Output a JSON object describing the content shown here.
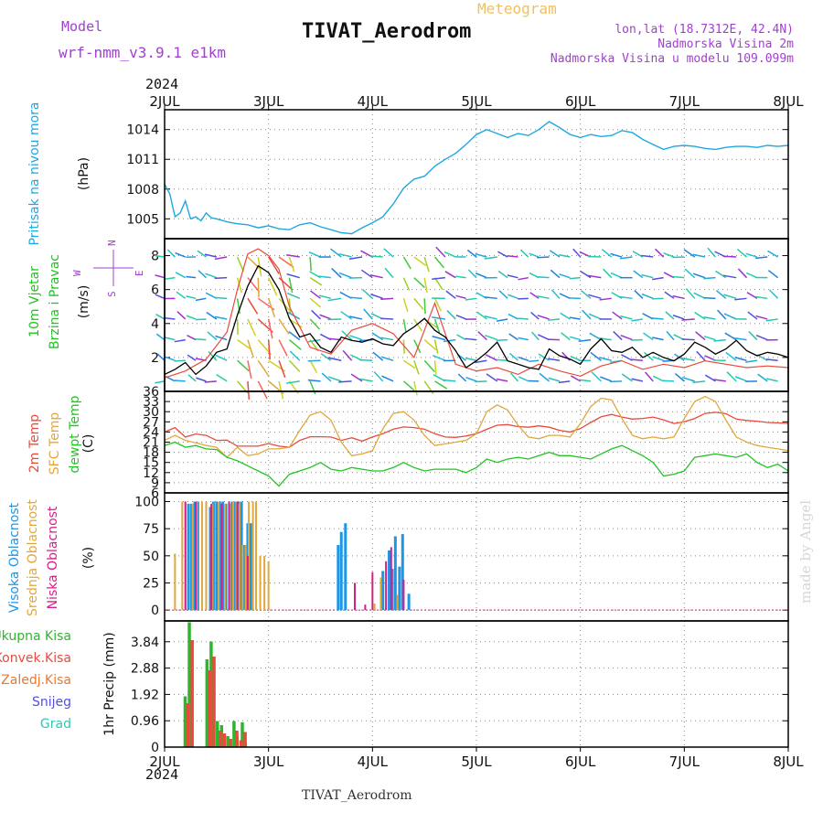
{
  "header": {
    "model_label": "Model",
    "model_name": "wrf-nmm_v3.9.1 e1km",
    "product": "Meteogram",
    "station": "TIVAT_Aerodrom",
    "lonlat": "lon,lat (18.7312E, 42.4N)",
    "elevation": "Nadmorska Visina 2m",
    "model_elevation": "Nadmorska Visina u modelu 109.099m",
    "footer_station": "TIVAT_Aerodrom",
    "watermark": "made by Angel",
    "year_top": "2024",
    "year_bottom": "2024"
  },
  "colors": {
    "pressure": "#1ea8e0",
    "temp2m": "#e84b3c",
    "sfc_temp": "#e0a83c",
    "dewpoint": "#22c422",
    "wind_speed": "#000000",
    "cloud_high": "#1e96e6",
    "cloud_mid": "#e0a83c",
    "cloud_low": "#d41e8c",
    "precip_total": "#2eb52e",
    "precip_conv": "#e84b3c",
    "precip_grid": "#e8782e",
    "snow": "#5050e0",
    "hail": "#2ec8b4",
    "purple_text": "#a040d0"
  },
  "chart_data": [
    {
      "type": "line",
      "panel": "pressure",
      "ylabel_left": "Pritisak na nivou mora",
      "unit": "(hPa)",
      "x_ticks": [
        "2JUL",
        "3JUL",
        "4JUL",
        "5JUL",
        "6JUL",
        "7JUL",
        "8JUL"
      ],
      "y_ticks": [
        1005,
        1008,
        1011,
        1014
      ],
      "ylim": [
        1003,
        1016
      ],
      "series": [
        {
          "x": [
            0,
            0.05,
            0.1,
            0.15,
            0.2,
            0.25,
            0.3,
            0.35,
            0.4,
            0.45,
            0.5,
            0.6,
            0.7,
            0.8,
            0.9,
            1.0,
            1.1,
            1.2,
            1.3,
            1.4,
            1.5,
            1.6,
            1.7,
            1.8,
            1.9,
            2.0,
            2.1,
            2.2,
            2.3,
            2.4,
            2.5,
            2.6,
            2.7,
            2.8,
            2.9,
            3.0,
            3.1,
            3.2,
            3.3,
            3.4,
            3.5,
            3.6,
            3.7,
            3.8,
            3.9,
            4.0,
            4.1,
            4.2,
            4.3,
            4.4,
            4.5,
            4.6,
            4.7,
            4.8,
            4.9,
            5.0,
            5.1,
            5.2,
            5.3,
            5.4,
            5.5,
            5.6,
            5.7,
            5.8,
            5.9,
            6.0
          ],
          "values": [
            1008.5,
            1007.5,
            1005.2,
            1005.6,
            1006.8,
            1005.0,
            1005.2,
            1004.8,
            1005.6,
            1005.1,
            1005.0,
            1004.7,
            1004.5,
            1004.4,
            1004.1,
            1004.3,
            1004.0,
            1003.9,
            1004.4,
            1004.6,
            1004.2,
            1003.9,
            1003.6,
            1003.5,
            1004.1,
            1004.6,
            1005.2,
            1006.5,
            1008.1,
            1009.0,
            1009.3,
            1010.3,
            1011.0,
            1011.6,
            1012.5,
            1013.5,
            1014.0,
            1013.6,
            1013.2,
            1013.6,
            1013.4,
            1014.0,
            1014.8,
            1014.2,
            1013.5,
            1013.2,
            1013.5,
            1013.3,
            1013.4,
            1013.9,
            1013.7,
            1013.0,
            1012.5,
            1012.0,
            1012.3,
            1012.4,
            1012.3,
            1012.1,
            1012.0,
            1012.2,
            1012.3,
            1012.3,
            1012.2,
            1012.4,
            1012.3,
            1012.4
          ]
        }
      ]
    },
    {
      "type": "line",
      "panel": "wind",
      "ylabel_left": "10m Vjetar",
      "ylabel_left2": "Brzina i Pravac",
      "unit": "(m/s)",
      "compass": {
        "n": "N",
        "s": "S",
        "e": "E",
        "w": "W"
      },
      "y_ticks": [
        2,
        4,
        6,
        8
      ],
      "ylim": [
        0,
        9
      ],
      "series": [
        {
          "name": "speed",
          "x": [
            0,
            0.1,
            0.2,
            0.3,
            0.4,
            0.5,
            0.6,
            0.7,
            0.8,
            0.9,
            1.0,
            1.1,
            1.2,
            1.3,
            1.4,
            1.5,
            1.6,
            1.7,
            1.8,
            1.9,
            2.0,
            2.1,
            2.2,
            2.3,
            2.4,
            2.5,
            2.6,
            2.7,
            2.8,
            2.9,
            3.0,
            3.1,
            3.2,
            3.3,
            3.4,
            3.5,
            3.6,
            3.7,
            3.8,
            3.9,
            4.0,
            4.1,
            4.2,
            4.3,
            4.4,
            4.5,
            4.6,
            4.7,
            4.8,
            4.9,
            5.0,
            5.1,
            5.2,
            5.3,
            5.4,
            5.5,
            5.6,
            5.7,
            5.8,
            5.9,
            6.0
          ],
          "values": [
            1.0,
            1.3,
            1.7,
            1.0,
            1.5,
            2.3,
            2.5,
            4.5,
            6.2,
            7.4,
            7.0,
            6.0,
            4.3,
            3.2,
            3.4,
            2.6,
            2.3,
            3.2,
            3.0,
            2.9,
            3.1,
            2.8,
            2.7,
            3.4,
            3.8,
            4.3,
            3.6,
            3.2,
            2.4,
            1.4,
            1.8,
            2.3,
            2.9,
            1.8,
            1.6,
            1.4,
            1.3,
            2.5,
            2.1,
            1.9,
            1.6,
            2.5,
            3.1,
            2.4,
            2.3,
            2.6,
            2.0,
            2.3,
            2.0,
            1.8,
            2.2,
            2.9,
            2.6,
            2.2,
            2.5,
            3.0,
            2.4,
            2.1,
            2.3,
            2.2,
            2.0
          ]
        },
        {
          "name": "gust",
          "x": [
            0,
            0.2,
            0.4,
            0.6,
            0.7,
            0.8,
            0.9,
            1.0,
            1.1,
            1.2,
            1.4,
            1.6,
            1.8,
            2.0,
            2.2,
            2.4,
            2.6,
            2.8,
            3.0,
            3.2,
            3.4,
            3.6,
            3.8,
            4.0,
            4.2,
            4.4,
            4.6,
            4.8,
            5.0,
            5.2,
            5.4,
            5.6,
            5.8,
            6.0
          ],
          "values": [
            0.8,
            1.2,
            1.9,
            3.5,
            6.0,
            8.1,
            8.4,
            8.0,
            7.2,
            5.0,
            2.6,
            2.2,
            3.6,
            4.0,
            3.4,
            2.0,
            5.2,
            1.6,
            1.2,
            1.4,
            1.0,
            1.6,
            1.2,
            0.9,
            1.5,
            1.8,
            1.3,
            1.6,
            1.4,
            1.8,
            1.6,
            1.4,
            1.5,
            1.4
          ]
        }
      ]
    },
    {
      "type": "line",
      "panel": "temperature",
      "ylabels_left": [
        "2m Temp",
        "SFC Temp",
        "dewpt Temp"
      ],
      "unit": "(C)",
      "y_ticks": [
        6,
        9,
        12,
        15,
        18,
        21,
        24,
        27,
        30,
        33,
        36
      ],
      "ylim": [
        6,
        36
      ],
      "series": [
        {
          "name": "temp2m",
          "x": [
            0,
            0.1,
            0.2,
            0.3,
            0.4,
            0.5,
            0.6,
            0.7,
            0.8,
            0.9,
            1.0,
            1.1,
            1.2,
            1.3,
            1.4,
            1.5,
            1.6,
            1.7,
            1.8,
            1.9,
            2.0,
            2.1,
            2.2,
            2.3,
            2.4,
            2.5,
            2.6,
            2.7,
            2.8,
            2.9,
            3.0,
            3.1,
            3.2,
            3.3,
            3.4,
            3.5,
            3.6,
            3.7,
            3.8,
            3.9,
            4.0,
            4.1,
            4.2,
            4.3,
            4.4,
            4.5,
            4.6,
            4.7,
            4.8,
            4.9,
            5.0,
            5.1,
            5.2,
            5.3,
            5.4,
            5.5,
            5.6,
            5.7,
            5.8,
            5.9,
            6.0
          ],
          "values": [
            24.0,
            25.3,
            22.5,
            23.4,
            23.0,
            21.5,
            21.6,
            19.8,
            19.8,
            19.8,
            20.6,
            19.8,
            19.5,
            21.5,
            22.6,
            22.6,
            22.5,
            21.5,
            22.3,
            21.3,
            22.5,
            23.5,
            24.8,
            25.5,
            25.3,
            24.8,
            23.5,
            22.5,
            22.4,
            22.8,
            23.5,
            24.8,
            26.0,
            26.2,
            25.6,
            25.4,
            25.8,
            25.4,
            24.5,
            24.0,
            25.0,
            26.8,
            28.5,
            29.2,
            28.4,
            27.8,
            28.0,
            28.4,
            27.6,
            26.5,
            27.0,
            28.0,
            29.5,
            29.8,
            29.4,
            27.8,
            27.4,
            27.2,
            26.8,
            26.7,
            26.5
          ]
        },
        {
          "name": "sfc_temp",
          "x": [
            0,
            0.1,
            0.2,
            0.3,
            0.4,
            0.5,
            0.6,
            0.7,
            0.8,
            0.9,
            1.0,
            1.1,
            1.2,
            1.3,
            1.4,
            1.5,
            1.6,
            1.7,
            1.8,
            1.9,
            2.0,
            2.1,
            2.2,
            2.3,
            2.4,
            2.5,
            2.6,
            2.7,
            2.8,
            2.9,
            3.0,
            3.1,
            3.2,
            3.3,
            3.4,
            3.5,
            3.6,
            3.7,
            3.8,
            3.9,
            4.0,
            4.1,
            4.2,
            4.3,
            4.4,
            4.5,
            4.6,
            4.7,
            4.8,
            4.9,
            5.0,
            5.1,
            5.2,
            5.3,
            5.4,
            5.5,
            5.6,
            5.7,
            5.8,
            5.9,
            6.0
          ],
          "values": [
            21.5,
            23.0,
            21.5,
            20.8,
            20.0,
            19.5,
            16.5,
            19.5,
            17.0,
            17.5,
            19.0,
            19.0,
            19.5,
            24.5,
            29.0,
            30.0,
            27.5,
            21.0,
            17.0,
            17.5,
            18.5,
            25.0,
            29.5,
            30.0,
            27.5,
            23.0,
            20.0,
            20.5,
            21.0,
            21.5,
            23.5,
            30.0,
            32.0,
            30.5,
            26.0,
            22.5,
            22.0,
            23.0,
            23.0,
            22.5,
            26.5,
            31.5,
            34.0,
            33.5,
            28.0,
            23.0,
            22.0,
            22.5,
            22.0,
            22.5,
            28.0,
            33.0,
            34.5,
            33.0,
            27.5,
            22.5,
            21.0,
            20.0,
            19.5,
            19.0,
            18.5
          ]
        },
        {
          "name": "dewpoint",
          "x": [
            0,
            0.1,
            0.2,
            0.3,
            0.4,
            0.5,
            0.6,
            0.7,
            0.8,
            0.9,
            1.0,
            1.1,
            1.2,
            1.3,
            1.4,
            1.5,
            1.6,
            1.7,
            1.8,
            1.9,
            2.0,
            2.1,
            2.2,
            2.3,
            2.4,
            2.5,
            2.6,
            2.7,
            2.8,
            2.9,
            3.0,
            3.1,
            3.2,
            3.3,
            3.4,
            3.5,
            3.6,
            3.7,
            3.8,
            3.9,
            4.0,
            4.1,
            4.2,
            4.3,
            4.4,
            4.5,
            4.6,
            4.7,
            4.8,
            4.9,
            5.0,
            5.1,
            5.2,
            5.3,
            5.4,
            5.5,
            5.6,
            5.7,
            5.8,
            5.9,
            6.0
          ],
          "values": [
            20.0,
            21.0,
            19.5,
            20.0,
            19.0,
            18.8,
            16.5,
            15.5,
            14.0,
            12.5,
            11.0,
            8.0,
            11.5,
            12.5,
            13.5,
            15.0,
            13.0,
            12.5,
            13.5,
            13.0,
            12.5,
            12.5,
            13.5,
            15.0,
            13.5,
            12.5,
            13.0,
            13.0,
            13.0,
            12.0,
            13.5,
            16.0,
            15.0,
            16.0,
            16.5,
            16.0,
            17.0,
            18.0,
            17.0,
            17.0,
            16.5,
            16.0,
            17.5,
            19.0,
            20.0,
            18.5,
            17.0,
            15.0,
            11.0,
            11.5,
            12.5,
            16.5,
            17.0,
            17.5,
            17.0,
            16.5,
            17.5,
            15.0,
            13.5,
            14.5,
            12.5
          ]
        }
      ]
    },
    {
      "type": "bar",
      "panel": "clouds",
      "ylabels_left": [
        "Visoka Oblacnost",
        "Srednja Oblacnost",
        "Niska Oblacnost"
      ],
      "unit": "(%)",
      "y_ticks": [
        0,
        25,
        50,
        75,
        100
      ],
      "ylim": [
        0,
        100
      ],
      "series": [
        {
          "name": "high",
          "x": [
            0.23,
            0.26,
            0.29,
            0.32,
            0.44,
            0.47,
            0.5,
            0.53,
            0.56,
            0.59,
            0.65,
            0.68,
            0.71,
            0.74,
            0.77,
            0.8,
            0.83,
            1.67,
            1.7,
            1.74,
            2.1,
            2.16,
            2.19,
            2.22,
            2.26,
            2.29,
            2.35
          ],
          "values": [
            98,
            98,
            100,
            100,
            95,
            100,
            100,
            100,
            100,
            98,
            100,
            100,
            100,
            100,
            60,
            80,
            80,
            60,
            72,
            80,
            36,
            55,
            38,
            68,
            40,
            70,
            15
          ]
        },
        {
          "name": "mid",
          "x": [
            0.1,
            0.17,
            0.2,
            0.27,
            0.31,
            0.36,
            0.4,
            0.46,
            0.52,
            0.58,
            0.63,
            0.66,
            0.69,
            0.72,
            0.75,
            0.78,
            0.81,
            0.85,
            0.88,
            0.92,
            0.96,
            1.0,
            2.02,
            2.08,
            2.24
          ],
          "values": [
            52,
            100,
            100,
            98,
            100,
            100,
            100,
            98,
            100,
            98,
            98,
            100,
            100,
            98,
            60,
            60,
            100,
            100,
            100,
            50,
            50,
            45,
            6,
            30,
            14
          ]
        },
        {
          "name": "low",
          "x": [
            0.2,
            0.3,
            0.45,
            0.55,
            0.62,
            0.7,
            0.8,
            1.83,
            1.93,
            2.0,
            2.13,
            2.18,
            2.3
          ],
          "values": [
            100,
            100,
            98,
            98,
            100,
            100,
            50,
            25,
            5,
            35,
            45,
            58,
            28
          ]
        }
      ]
    },
    {
      "type": "bar",
      "panel": "precipitation",
      "ylabels_left": [
        "Ukupna Kisa",
        "Konvek.Kisa",
        "Zaledj.Kisa",
        "Snijeg",
        "Grad"
      ],
      "ylabel_right": "1hr Precip (mm)",
      "y_ticks": [
        0,
        0.96,
        1.92,
        2.88,
        3.84
      ],
      "ylim": [
        0,
        4.6
      ],
      "series": [
        {
          "name": "total",
          "x": [
            0.2,
            0.24,
            0.41,
            0.45,
            0.51,
            0.55,
            0.61,
            0.67,
            0.7,
            0.75,
            0.78
          ],
          "values": [
            1.85,
            4.55,
            3.2,
            3.85,
            0.95,
            0.8,
            0.4,
            0.95,
            0.4,
            0.9,
            0.15
          ]
        },
        {
          "name": "conv",
          "x": [
            0.21,
            0.25,
            0.42,
            0.46,
            0.52,
            0.56,
            0.62,
            0.68,
            0.72,
            0.76
          ],
          "values": [
            1.6,
            3.9,
            2.8,
            3.3,
            0.6,
            0.5,
            0.3,
            0.6,
            0.25,
            0.55
          ]
        }
      ]
    }
  ]
}
